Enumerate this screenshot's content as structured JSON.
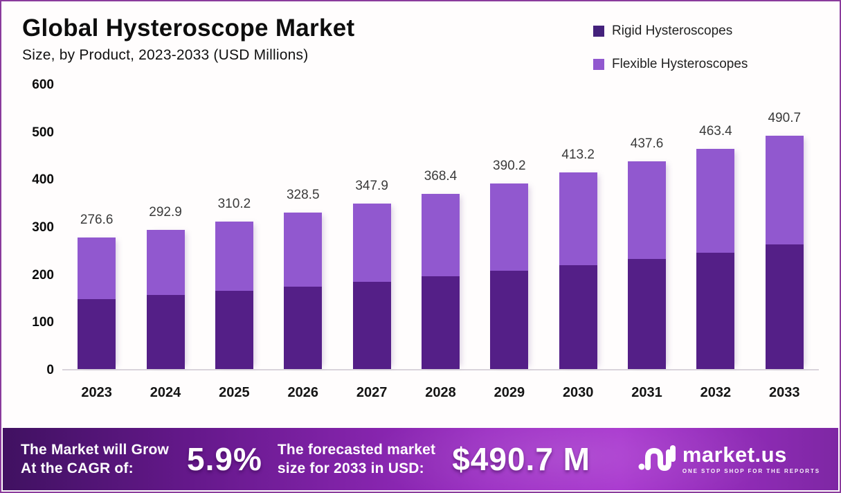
{
  "header": {
    "title": "Global Hysteroscope Market",
    "subtitle": "Size, by Product, 2023-2033 (USD Millions)"
  },
  "legend": [
    {
      "label": "Rigid Hysteroscopes",
      "color": "#44217c"
    },
    {
      "label": "Flexible Hysteroscopes",
      "color": "#9158cf"
    }
  ],
  "chart_data": {
    "type": "bar",
    "stacked": true,
    "title": "Global Hysteroscope Market Size, by Product, 2023-2033 (USD Millions)",
    "categories": [
      "2023",
      "2024",
      "2025",
      "2026",
      "2027",
      "2028",
      "2029",
      "2030",
      "2031",
      "2032",
      "2033"
    ],
    "series": [
      {
        "name": "Rigid Hysteroscopes",
        "color": "#541f87",
        "values": [
          147,
          156,
          165,
          174,
          184,
          195,
          207,
          219,
          231,
          245,
          262
        ],
        "note": "values estimated from bar pixel heights; only totals are labeled in the figure"
      },
      {
        "name": "Flexible Hysteroscopes",
        "color": "#9158cf",
        "values": [
          129.6,
          136.9,
          145.2,
          154.5,
          163.9,
          173.4,
          183.2,
          194.2,
          206.6,
          218.4,
          228.7
        ],
        "note": "values estimated as total minus rigid"
      }
    ],
    "totals": [
      276.6,
      292.9,
      310.2,
      328.5,
      347.9,
      368.4,
      390.2,
      413.2,
      437.6,
      463.4,
      490.7
    ],
    "xlabel": "",
    "ylabel": "",
    "ylim": [
      0,
      600
    ],
    "yticks": [
      0,
      100,
      200,
      300,
      400,
      500,
      600
    ],
    "grid": false,
    "legend_position": "top-right"
  },
  "footer": {
    "cagr_line1": "The Market will Grow",
    "cagr_line2": "At the CAGR of:",
    "cagr_value": "5.9%",
    "forecast_line1": "The forecasted market",
    "forecast_line2": "size for 2033 in USD:",
    "forecast_value": "$490.7 M",
    "brand": "market.us",
    "brand_tagline": "ONE STOP SHOP FOR THE REPORTS"
  }
}
